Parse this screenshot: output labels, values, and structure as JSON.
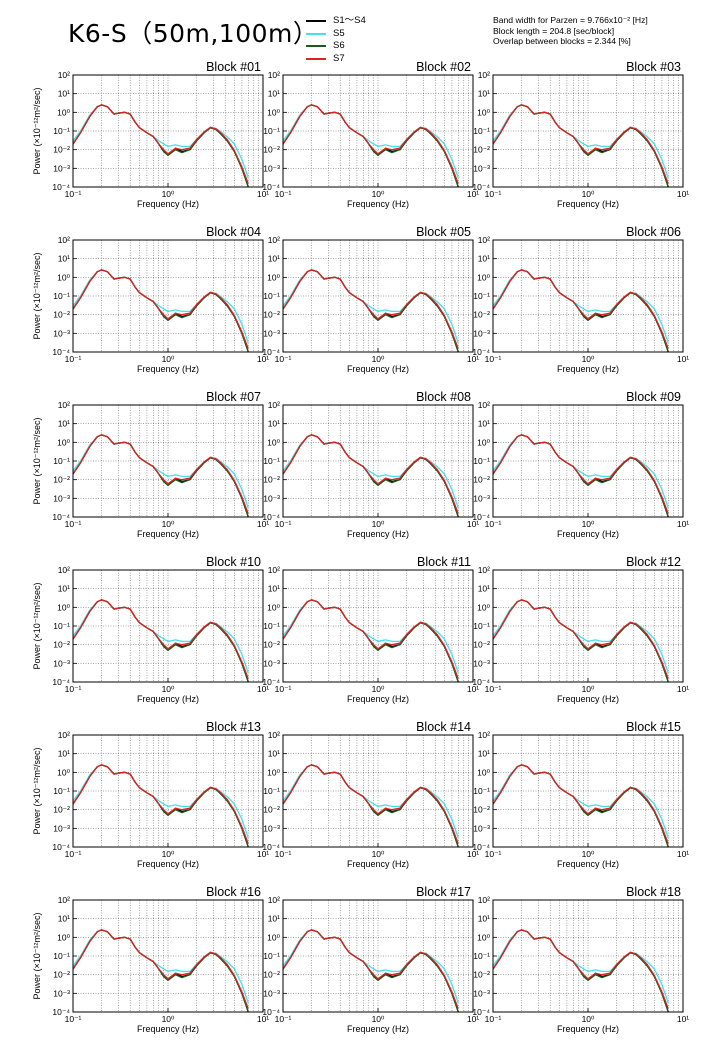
{
  "title": "K6-S（50m,100m）",
  "legend": [
    {
      "label": "S1～S4",
      "color": "#000000"
    },
    {
      "label": "S5",
      "color": "#44e0ee"
    },
    {
      "label": "S6",
      "color": "#1a5a1a"
    },
    {
      "label": "S7",
      "color": "#dd2222"
    }
  ],
  "params": [
    "Band width for Parzen = 9.766x10⁻² [Hz]",
    "Block length = 204.8 [sec/block]",
    "Overlap between blocks = 2.344 [%]"
  ],
  "chart_data": {
    "type": "line",
    "log_x": true,
    "log_y": true,
    "xlabel": "Frequency (Hz)",
    "ylabel": "Power (×10⁻¹²m²/sec)",
    "xlim": [
      0.1,
      10
    ],
    "ylim": [
      0.0001,
      100
    ],
    "x_ticks": [
      {
        "v": 0.1,
        "label": "10⁻¹"
      },
      {
        "v": 1,
        "label": "10⁰"
      },
      {
        "v": 10,
        "label": "10¹"
      }
    ],
    "y_ticks": [
      {
        "v": 100,
        "label": "10²"
      },
      {
        "v": 10,
        "label": "10¹"
      },
      {
        "v": 1,
        "label": "10⁰"
      },
      {
        "v": 0.1,
        "label": "10⁻¹"
      },
      {
        "v": 0.01,
        "label": "10⁻²"
      },
      {
        "v": 0.001,
        "label": "10⁻³"
      },
      {
        "v": 0.0001,
        "label": "10⁻⁴"
      }
    ],
    "grid": true,
    "x": [
      0.1,
      0.12,
      0.15,
      0.18,
      0.2,
      0.23,
      0.27,
      0.3,
      0.35,
      0.4,
      0.45,
      0.5,
      0.6,
      0.7,
      0.8,
      0.9,
      1.0,
      1.2,
      1.4,
      1.7,
      2.0,
      2.4,
      2.8,
      3.2,
      3.6,
      4.2,
      5.0,
      6.0,
      7.0
    ],
    "series": [
      {
        "name": "S1～S4",
        "values": [
          0.02,
          0.08,
          0.6,
          2.0,
          2.5,
          2.0,
          0.8,
          0.9,
          1.0,
          0.8,
          0.3,
          0.15,
          0.08,
          0.05,
          0.02,
          0.008,
          0.005,
          0.012,
          0.008,
          0.01,
          0.03,
          0.08,
          0.15,
          0.12,
          0.07,
          0.03,
          0.008,
          0.001,
          0.0001
        ]
      },
      {
        "name": "S5",
        "values": [
          0.03,
          0.1,
          0.7,
          2.0,
          2.5,
          2.0,
          0.8,
          0.9,
          1.0,
          0.8,
          0.3,
          0.15,
          0.08,
          0.05,
          0.03,
          0.02,
          0.015,
          0.018,
          0.015,
          0.015,
          0.035,
          0.09,
          0.15,
          0.14,
          0.09,
          0.05,
          0.02,
          0.003,
          0.0003
        ]
      },
      {
        "name": "S6",
        "values": [
          0.02,
          0.08,
          0.6,
          2.0,
          2.5,
          2.0,
          0.8,
          0.9,
          1.0,
          0.8,
          0.3,
          0.15,
          0.08,
          0.05,
          0.02,
          0.008,
          0.005,
          0.01,
          0.007,
          0.01,
          0.03,
          0.08,
          0.15,
          0.12,
          0.07,
          0.03,
          0.008,
          0.001,
          0.0001
        ]
      },
      {
        "name": "S7",
        "values": [
          0.02,
          0.08,
          0.6,
          2.0,
          2.5,
          2.0,
          0.8,
          0.9,
          1.0,
          0.8,
          0.3,
          0.15,
          0.08,
          0.05,
          0.02,
          0.01,
          0.006,
          0.012,
          0.01,
          0.012,
          0.035,
          0.09,
          0.16,
          0.13,
          0.08,
          0.035,
          0.009,
          0.0012,
          0.00015
        ]
      }
    ],
    "panels": [
      {
        "title": "Block #01"
      },
      {
        "title": "Block #02"
      },
      {
        "title": "Block #03"
      },
      {
        "title": "Block #04"
      },
      {
        "title": "Block #05"
      },
      {
        "title": "Block #06"
      },
      {
        "title": "Block #07"
      },
      {
        "title": "Block #08"
      },
      {
        "title": "Block #09"
      },
      {
        "title": "Block #10"
      },
      {
        "title": "Block #11"
      },
      {
        "title": "Block #12"
      },
      {
        "title": "Block #13"
      },
      {
        "title": "Block #14"
      },
      {
        "title": "Block #15"
      },
      {
        "title": "Block #16"
      },
      {
        "title": "Block #17"
      },
      {
        "title": "Block #18"
      }
    ]
  }
}
